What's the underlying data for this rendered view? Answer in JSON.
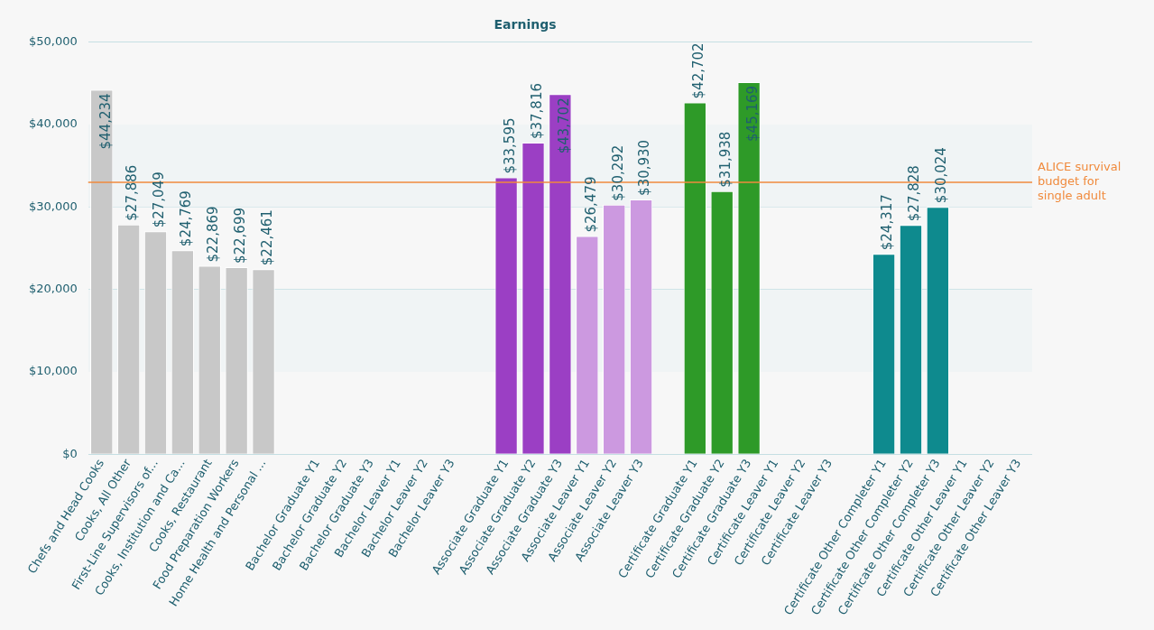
{
  "chart_data": {
    "type": "bar",
    "title": "Earnings",
    "categories": [
      "Chefs and Head Cooks",
      "Cooks, All Other",
      "First-Line Supervisors of...",
      "Cooks, Institution and Ca...",
      "Cooks, Restaurant",
      "Food Preparation Workers",
      "Home Health and Personal ...",
      null,
      "Bachelor Graduate Y1",
      "Bachelor Graduate Y2",
      "Bachelor Graduate Y3",
      "Bachelor Leaver Y1",
      "Bachelor Leaver Y2",
      "Bachelor Leaver Y3",
      null,
      "Associate Graduate Y1",
      "Associate Graduate Y2",
      "Associate Graduate Y3",
      "Associate Leaver Y1",
      "Associate Leaver Y2",
      "Associate Leaver Y3",
      null,
      "Certificate Graduate Y1",
      "Certificate Graduate Y2",
      "Certificate Graduate Y3",
      "Certificate Leaver Y1",
      "Certificate Leaver Y2",
      "Certificate Leaver Y3",
      null,
      "Certificate Other Completer Y1",
      "Certificate Other Completer Y2",
      "Certificate Other Completer Y3",
      "Certificate Other Leaver Y1",
      "Certificate Other Leaver Y2",
      "Certificate Other Leaver Y3"
    ],
    "values": [
      44234,
      27886,
      27049,
      24769,
      22869,
      22699,
      22461,
      null,
      null,
      null,
      null,
      null,
      null,
      null,
      null,
      33595,
      37816,
      43702,
      26479,
      30292,
      30930,
      null,
      42702,
      31938,
      45169,
      null,
      null,
      null,
      null,
      24317,
      27828,
      30024,
      null,
      null,
      null
    ],
    "colors": [
      "#c8c8c8",
      "#c8c8c8",
      "#c8c8c8",
      "#c8c8c8",
      "#c8c8c8",
      "#c8c8c8",
      "#c8c8c8",
      null,
      null,
      null,
      null,
      null,
      null,
      null,
      null,
      "#9b3fc4",
      "#9b3fc4",
      "#9b3fc4",
      "#cc99e0",
      "#cc99e0",
      "#cc99e0",
      null,
      "#2e9a28",
      "#2e9a28",
      "#2e9a28",
      null,
      null,
      null,
      null,
      "#0e8a8e",
      "#0e8a8e",
      "#0e8a8e",
      null,
      null,
      null
    ],
    "value_labels": [
      "$44,234",
      "$27,886",
      "$27,049",
      "$24,769",
      "$22,869",
      "$22,699",
      "$22,461",
      null,
      null,
      null,
      null,
      null,
      null,
      null,
      null,
      "$33,595",
      "$37,816",
      "$43,702",
      "$26,479",
      "$30,292",
      "$30,930",
      null,
      "$42,702",
      "$31,938",
      "$45,169",
      null,
      null,
      null,
      null,
      "$24,317",
      "$27,828",
      "$30,024",
      null,
      null,
      null
    ],
    "ylim": [
      0,
      50000
    ],
    "yticks": [
      {
        "value": 0,
        "label": "$0"
      },
      {
        "value": 10000,
        "label": "$10,000"
      },
      {
        "value": 20000,
        "label": "$20,000"
      },
      {
        "value": 30000,
        "label": "$30,000"
      },
      {
        "value": 40000,
        "label": "$40,000"
      },
      {
        "value": 50000,
        "label": "$50,000"
      }
    ],
    "grid": "y",
    "legend": false,
    "ref_lines": [
      {
        "axis": "y",
        "value": 33000,
        "label": "ALICE survival budget for single adult",
        "color": "#f08a3c"
      }
    ],
    "bands": [
      {
        "axis": "y",
        "from": 10000,
        "to": 20000,
        "color": "#f0f4f5"
      },
      {
        "axis": "y",
        "from": 30000,
        "to": 40000,
        "color": "#f0f4f5"
      }
    ]
  }
}
